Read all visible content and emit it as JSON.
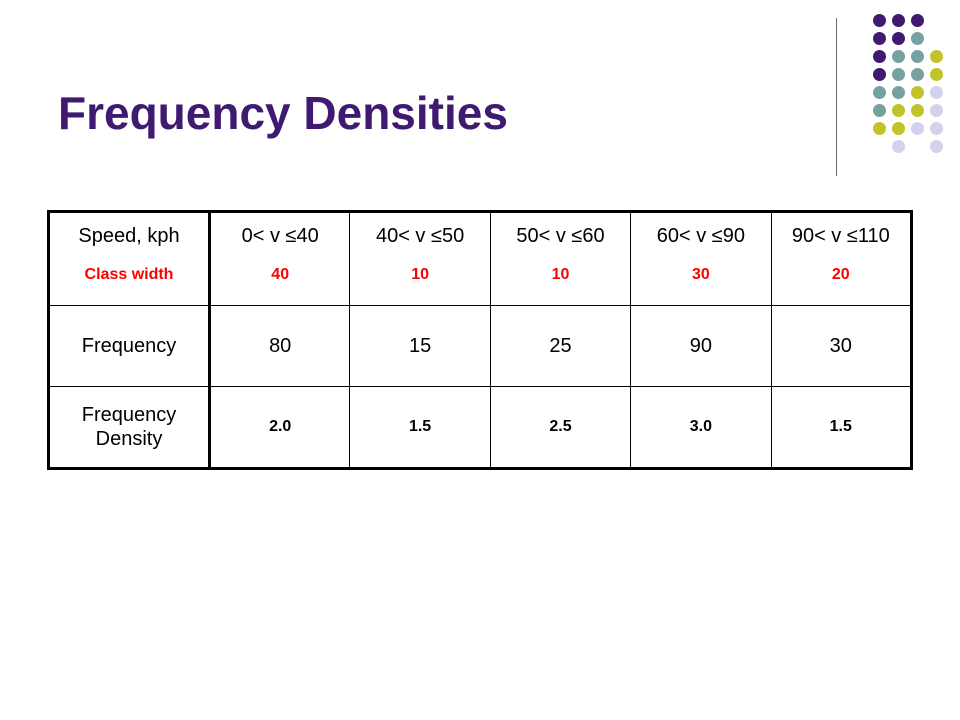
{
  "slide": {
    "title": "Frequency Densities"
  },
  "colors": {
    "title": "#3f1a70",
    "accent_red": "#ff0000",
    "dot_purple": "#3f1a70",
    "dot_teal": "#77a0a0",
    "dot_olive": "#c0c42a",
    "dot_lavender": "#d2d2ec"
  },
  "table": {
    "row_labels": {
      "speed": "Speed, kph",
      "class_width": "Class width",
      "frequency": "Frequency",
      "frequency_density": "Frequency Density"
    },
    "columns": [
      {
        "range": "0< v ≤40",
        "class_width": "40",
        "frequency": "80",
        "density": "2.0"
      },
      {
        "range": "40< v ≤50",
        "class_width": "10",
        "frequency": "15",
        "density": "1.5"
      },
      {
        "range": "50< v ≤60",
        "class_width": "10",
        "frequency": "25",
        "density": "2.5"
      },
      {
        "range": "60< v ≤90",
        "class_width": "30",
        "frequency": "90",
        "density": "3.0"
      },
      {
        "range": "90< v ≤110",
        "class_width": "20",
        "frequency": "30",
        "density": "1.5"
      }
    ]
  }
}
